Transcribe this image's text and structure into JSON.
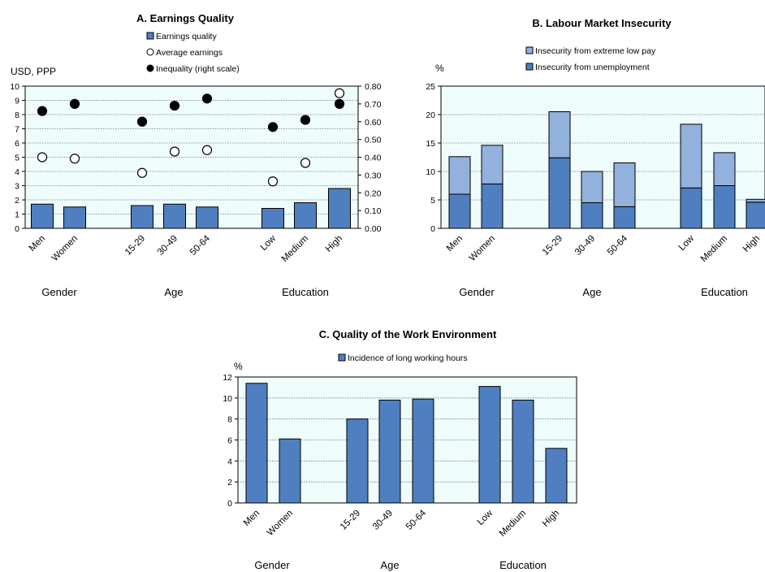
{
  "colors": {
    "plot_bg": "#eefcfc",
    "bar_dark": "#4f7fc0",
    "bar_light": "#92b1dc",
    "grid": "#777777"
  },
  "chart_data": [
    {
      "id": "A",
      "type": "bar",
      "title": "A. Earnings Quality",
      "ylabel": "USD, PPP",
      "ylim": [
        0,
        10
      ],
      "y2lim": [
        0,
        0.8
      ],
      "yticks": [
        "0",
        "1",
        "2",
        "3",
        "4",
        "5",
        "6",
        "7",
        "8",
        "9",
        "10"
      ],
      "y2ticks": [
        "0.00",
        "0.10",
        "0.20",
        "0.30",
        "0.40",
        "0.50",
        "0.60",
        "0.70",
        "0.80"
      ],
      "legend": [
        "Earnings quality",
        "Average earnings",
        "Inequality (right scale)"
      ],
      "categories": [
        "Men",
        "Women",
        "15-29",
        "30-49",
        "50-64",
        "Low",
        "Medium",
        "High"
      ],
      "groups": [
        {
          "label": "Gender",
          "categories": [
            "Men",
            "Women"
          ]
        },
        {
          "label": "Age",
          "categories": [
            "15-29",
            "30-49",
            "50-64"
          ]
        },
        {
          "label": "Education",
          "categories": [
            "Low",
            "Medium",
            "High"
          ]
        }
      ],
      "series": [
        {
          "name": "Earnings quality",
          "type": "bar",
          "axis": "left",
          "values": [
            1.7,
            1.5,
            1.6,
            1.7,
            1.5,
            1.4,
            1.8,
            2.8
          ]
        },
        {
          "name": "Average earnings",
          "type": "scatter",
          "axis": "left",
          "values": [
            5.0,
            4.9,
            3.9,
            5.4,
            5.5,
            3.3,
            4.6,
            9.5
          ]
        },
        {
          "name": "Inequality (right scale)",
          "type": "scatter",
          "axis": "right",
          "values": [
            0.66,
            0.7,
            0.6,
            0.69,
            0.73,
            0.57,
            0.61,
            0.7
          ]
        }
      ]
    },
    {
      "id": "B",
      "type": "bar",
      "stacked": true,
      "title": "B. Labour Market Insecurity",
      "ylabel": "%",
      "ylim": [
        0,
        25
      ],
      "yticks": [
        "0",
        "5",
        "10",
        "15",
        "20",
        "25"
      ],
      "legend": [
        "Insecurity from extreme low pay",
        "Insecurity from unemployment"
      ],
      "categories": [
        "Men",
        "Women",
        "15-29",
        "30-49",
        "50-64",
        "Low",
        "Medium",
        "High"
      ],
      "groups": [
        {
          "label": "Gender",
          "categories": [
            "Men",
            "Women"
          ]
        },
        {
          "label": "Age",
          "categories": [
            "15-29",
            "30-49",
            "50-64"
          ]
        },
        {
          "label": "Education",
          "categories": [
            "Low",
            "Medium",
            "High"
          ]
        }
      ],
      "series": [
        {
          "name": "Insecurity from unemployment",
          "values": [
            6.0,
            7.8,
            12.4,
            4.5,
            3.8,
            7.1,
            7.5,
            4.6
          ]
        },
        {
          "name": "Insecurity from extreme low pay",
          "values": [
            6.6,
            6.8,
            8.1,
            5.5,
            7.7,
            11.2,
            5.8,
            0.5
          ]
        }
      ]
    },
    {
      "id": "C",
      "type": "bar",
      "title": "C. Quality of the Work Environment",
      "ylabel": "%",
      "ylim": [
        0,
        12
      ],
      "yticks": [
        "0",
        "2",
        "4",
        "6",
        "8",
        "10",
        "12"
      ],
      "legend": [
        "Incidence of long working hours"
      ],
      "categories": [
        "Men",
        "Women",
        "15-29",
        "30-49",
        "50-64",
        "Low",
        "Medium",
        "High"
      ],
      "groups": [
        {
          "label": "Gender",
          "categories": [
            "Men",
            "Women"
          ]
        },
        {
          "label": "Age",
          "categories": [
            "15-29",
            "30-49",
            "50-64"
          ]
        },
        {
          "label": "Education",
          "categories": [
            "Low",
            "Medium",
            "High"
          ]
        }
      ],
      "series": [
        {
          "name": "Incidence of long working hours",
          "values": [
            11.4,
            6.1,
            8.0,
            9.8,
            9.9,
            11.1,
            9.8,
            5.2
          ]
        }
      ]
    }
  ]
}
